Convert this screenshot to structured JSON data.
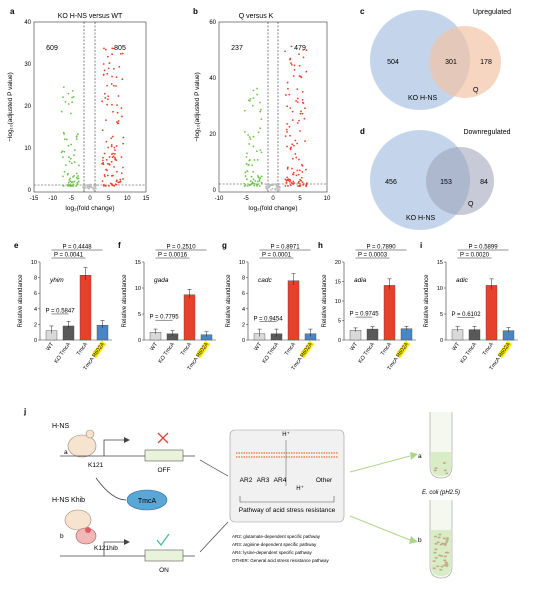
{
  "panels": {
    "a": {
      "letter": "a",
      "title": "KO H-NS versus WT",
      "left_count": "609",
      "right_count": "805",
      "xticks": [
        "-15",
        "-10",
        "-5",
        "0",
        "5",
        "10",
        "15"
      ],
      "yticks": [
        "0",
        "10",
        "20",
        "30",
        "40"
      ],
      "xlabel": "log₂(fold change)",
      "ylabel": "−log₁₀(adjusted P value)"
    },
    "b": {
      "letter": "b",
      "title": "Q versus K",
      "left_count": "237",
      "right_count": "479",
      "xticks": [
        "-10",
        "-5",
        "0",
        "5",
        "10"
      ],
      "yticks": [
        "0",
        "20",
        "40",
        "60"
      ],
      "xlabel": "log₂(fold change)",
      "ylabel": "−log₁₀(adjusted P value)"
    },
    "c": {
      "letter": "c",
      "title": "Upregulated",
      "left": "504",
      "overlap": "301",
      "right": "178",
      "left_label": "KO H-NS",
      "right_label": "Q"
    },
    "d": {
      "letter": "d",
      "title": "Downregulated",
      "left": "456",
      "overlap": "153",
      "right": "84",
      "left_label": "KO H-NS",
      "right_label": "Q"
    }
  },
  "bar_panels": [
    {
      "letter": "e",
      "gene": "yhim",
      "yticks": [
        "0",
        "2",
        "4",
        "6",
        "8",
        "10"
      ],
      "p_top": "P = 0.4448",
      "p_mid": "P = 0.0041",
      "p_low": "P = 0.5847"
    },
    {
      "letter": "f",
      "gene": "gada",
      "yticks": [
        "0",
        "5",
        "10",
        "15"
      ],
      "p_top": "P = 0.2510",
      "p_mid": "P = 0.0016",
      "p_low": "P = 0.7795"
    },
    {
      "letter": "g",
      "gene": "cadc",
      "yticks": [
        "0",
        "2",
        "4",
        "6",
        "8",
        "10"
      ],
      "p_top": "P = 0.8971",
      "p_mid": "P = 0.0001",
      "p_low": "P = 0.9454"
    },
    {
      "letter": "h",
      "gene": "adia",
      "yticks": [
        "0",
        "5",
        "10",
        "15",
        "20"
      ],
      "p_top": "P = 0.7890",
      "p_mid": "P = 0.0003",
      "p_low": "P = 0.9745"
    },
    {
      "letter": "i",
      "gene": "adic",
      "yticks": [
        "0",
        "5",
        "10",
        "15"
      ],
      "p_top": "P = 0.5899",
      "p_mid": "P = 0.0020",
      "p_low": "P = 0.6102"
    }
  ],
  "bar_common": {
    "ylabel": "Relative abundance",
    "categories": [
      "WT",
      "KO TmcA",
      "TmcA",
      "TmcA R602A"
    ],
    "colors": [
      "#d9d9d9",
      "#595959",
      "#e8412b",
      "#4a86c5"
    ],
    "highlight": "#fff200"
  },
  "panel_j": {
    "letter": "j",
    "hns": "H-NS",
    "k121": "K121",
    "off": "OFF",
    "hns_khib": "H-NS Khib",
    "k121hib": "K121hib",
    "on": "ON",
    "tmca": "TmcA",
    "a": "a",
    "b": "b",
    "hplus": "H⁺",
    "ar2": "AR2",
    "ar3": "AR3",
    "ar4": "AR4",
    "other": "Other",
    "pathway": "Pathway of acid stress resistance",
    "legend": [
      "AR2: glutamate-dependent specific pathway",
      "AR3: arginine-dependent specific pathway",
      "AR4: lysine-dependent specific pathway",
      "OTHER: General acid stress resistance pathway"
    ],
    "tube_a": "a",
    "tube_b": "b",
    "ecoli": "E. coli (pH2.5)"
  },
  "chart_data": [
    {
      "type": "bar",
      "panel": "e",
      "categories": [
        "WT",
        "KO TmcA",
        "TmcA",
        "TmcA R602A"
      ],
      "values": [
        1.2,
        1.8,
        8.3,
        1.9
      ],
      "ylabel": "Relative abundance",
      "ylim": [
        0,
        10
      ]
    },
    {
      "type": "bar",
      "panel": "f",
      "categories": [
        "WT",
        "KO TmcA",
        "TmcA",
        "TmcA R602A"
      ],
      "values": [
        1.5,
        1.2,
        8.7,
        1.0
      ],
      "ylabel": "Relative abundance",
      "ylim": [
        0,
        15
      ]
    },
    {
      "type": "bar",
      "panel": "g",
      "categories": [
        "WT",
        "KO TmcA",
        "TmcA",
        "TmcA R602A"
      ],
      "values": [
        0.8,
        0.8,
        7.6,
        0.8
      ],
      "ylabel": "Relative abundance",
      "ylim": [
        0,
        10
      ]
    },
    {
      "type": "bar",
      "panel": "h",
      "categories": [
        "WT",
        "KO TmcA",
        "TmcA",
        "TmcA R602A"
      ],
      "values": [
        2.5,
        2.8,
        14.0,
        2.9
      ],
      "ylabel": "Relative abundance",
      "ylim": [
        0,
        20
      ]
    },
    {
      "type": "bar",
      "panel": "i",
      "categories": [
        "WT",
        "KO TmcA",
        "TmcA",
        "TmcA R602A"
      ],
      "values": [
        2.0,
        2.0,
        10.5,
        1.8
      ],
      "ylabel": "Relative abundance",
      "ylim": [
        0,
        15
      ]
    }
  ]
}
